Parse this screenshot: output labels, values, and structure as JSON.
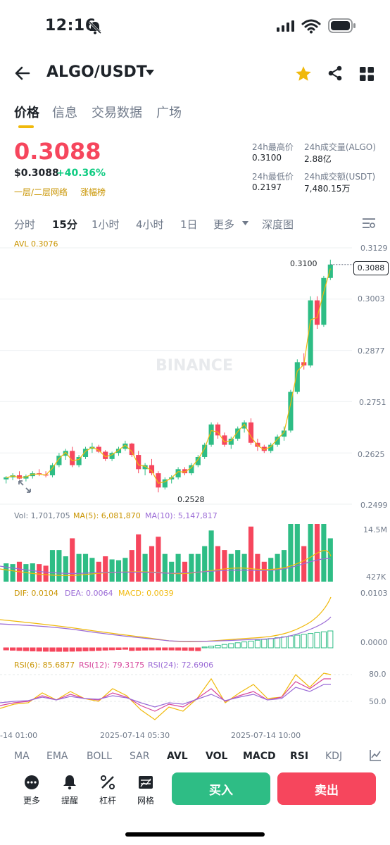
{
  "status": {
    "time": "12:16"
  },
  "header": {
    "pair": "ALGO/USDT"
  },
  "tabs": [
    {
      "label": "价格"
    },
    {
      "label": "信息"
    },
    {
      "label": "交易数据"
    },
    {
      "label": "广场"
    }
  ],
  "ticker": {
    "price": "0.3088",
    "usd_price": "$0.3088",
    "change": "+40.36%",
    "tag_layer": "一层/二层网络",
    "tag_rank": "涨幅榜",
    "high_label": "24h最高价",
    "high": "0.3100",
    "low_label": "24h最低价",
    "low": "0.2197",
    "vol_algo_label": "24h成交量(ALGO)",
    "vol_algo": "2.88亿",
    "vol_usdt_label": "24h成交额(USDT)",
    "vol_usdt": "7,480.15万"
  },
  "intervals": [
    {
      "label": "分时"
    },
    {
      "label": "15分"
    },
    {
      "label": "1小时"
    },
    {
      "label": "4小时"
    },
    {
      "label": "1日"
    },
    {
      "label": "更多"
    },
    {
      "label": "深度图"
    }
  ],
  "indicators_text": {
    "avl": "AVL 0.3076",
    "high_marker": "0.3100",
    "low_marker": "0.2528",
    "current_price_tag": "0.3088",
    "vol": "Vol: 1,701,705",
    "vol_ma5": "MA(5): 6,081,870",
    "vol_ma10": "MA(10): 5,147,817",
    "vol_axis_top": "14.5M",
    "vol_axis_bottom": "427K",
    "dif": "DIF: 0.0104",
    "dea": "DEA: 0.0064",
    "macd": "MACD: 0.0039",
    "macd_axis_top": "0.0103",
    "macd_axis_bottom": "0.0000",
    "rsi6": "RSI(6): 85.6877",
    "rsi12": "RSI(12): 79.3175",
    "rsi24": "RSI(24): 72.6906",
    "rsi_axis_top": "80.0",
    "rsi_axis_bottom": "50.0",
    "watermark": "BINANCE"
  },
  "price_axis": [
    "0.3129",
    "0.3003",
    "0.2877",
    "0.2751",
    "0.2625",
    "0.2499"
  ],
  "time_axis": [
    "-14 01:00",
    "2025-07-14 05:30",
    "2025-07-14 10:00"
  ],
  "indicator_tabs": [
    {
      "label": "MA"
    },
    {
      "label": "EMA"
    },
    {
      "label": "BOLL"
    },
    {
      "label": "SAR"
    },
    {
      "label": "AVL"
    },
    {
      "label": "VOL"
    },
    {
      "label": "MACD"
    },
    {
      "label": "RSI"
    },
    {
      "label": "KDJ"
    }
  ],
  "bottom_bar": [
    {
      "label": "更多"
    },
    {
      "label": "提醒"
    },
    {
      "label": "杠杆"
    },
    {
      "label": "网格"
    }
  ],
  "buttons": {
    "buy": "买入",
    "sell": "卖出"
  },
  "colors": {
    "up": "#2ebd85",
    "down": "#f6465d",
    "accent": "#f0b90b",
    "ma5": "#f0b90b",
    "ma10": "#9b6bd6"
  },
  "chart_data": {
    "type": "candlestick",
    "ylim": [
      0.2499,
      0.3129
    ],
    "candles": [
      [
        0.256,
        0.2568,
        0.255,
        0.2565
      ],
      [
        0.2565,
        0.2575,
        0.2558,
        0.257
      ],
      [
        0.257,
        0.258,
        0.256,
        0.2562
      ],
      [
        0.2562,
        0.2572,
        0.2555,
        0.2568
      ],
      [
        0.2568,
        0.258,
        0.2562,
        0.2575
      ],
      [
        0.2575,
        0.2585,
        0.2568,
        0.2572
      ],
      [
        0.2572,
        0.258,
        0.2565,
        0.257
      ],
      [
        0.257,
        0.26,
        0.2565,
        0.2595
      ],
      [
        0.2595,
        0.2625,
        0.259,
        0.2618
      ],
      [
        0.2618,
        0.2635,
        0.2608,
        0.263
      ],
      [
        0.263,
        0.264,
        0.259,
        0.2595
      ],
      [
        0.2595,
        0.262,
        0.259,
        0.2615
      ],
      [
        0.2615,
        0.264,
        0.261,
        0.2635
      ],
      [
        0.2635,
        0.265,
        0.2625,
        0.264
      ],
      [
        0.264,
        0.2645,
        0.2625,
        0.2628
      ],
      [
        0.2628,
        0.2632,
        0.2605,
        0.261
      ],
      [
        0.261,
        0.2628,
        0.2605,
        0.2625
      ],
      [
        0.2625,
        0.264,
        0.2618,
        0.2635
      ],
      [
        0.2635,
        0.2655,
        0.263,
        0.2648
      ],
      [
        0.2648,
        0.265,
        0.2615,
        0.262
      ],
      [
        0.262,
        0.263,
        0.2575,
        0.2585
      ],
      [
        0.2585,
        0.26,
        0.257,
        0.2595
      ],
      [
        0.2595,
        0.261,
        0.257,
        0.2575
      ],
      [
        0.2575,
        0.258,
        0.2528,
        0.254
      ],
      [
        0.254,
        0.2565,
        0.2535,
        0.256
      ],
      [
        0.256,
        0.257,
        0.255,
        0.2565
      ],
      [
        0.2565,
        0.259,
        0.256,
        0.2585
      ],
      [
        0.2585,
        0.259,
        0.257,
        0.2575
      ],
      [
        0.2575,
        0.26,
        0.257,
        0.2595
      ],
      [
        0.2595,
        0.262,
        0.259,
        0.2615
      ],
      [
        0.2615,
        0.265,
        0.261,
        0.2645
      ],
      [
        0.2645,
        0.27,
        0.264,
        0.2695
      ],
      [
        0.2695,
        0.27,
        0.266,
        0.2668
      ],
      [
        0.2668,
        0.2675,
        0.264,
        0.2645
      ],
      [
        0.2645,
        0.2665,
        0.2635,
        0.266
      ],
      [
        0.266,
        0.269,
        0.2655,
        0.2685
      ],
      [
        0.2685,
        0.2705,
        0.2675,
        0.27
      ],
      [
        0.27,
        0.271,
        0.2645,
        0.265
      ],
      [
        0.265,
        0.266,
        0.263,
        0.264
      ],
      [
        0.264,
        0.2645,
        0.2625,
        0.263
      ],
      [
        0.263,
        0.265,
        0.2625,
        0.2645
      ],
      [
        0.2645,
        0.267,
        0.264,
        0.2665
      ],
      [
        0.2665,
        0.269,
        0.2655,
        0.268
      ],
      [
        0.268,
        0.278,
        0.2675,
        0.2775
      ],
      [
        0.2775,
        0.2855,
        0.277,
        0.2848
      ],
      [
        0.2848,
        0.287,
        0.283,
        0.284
      ],
      [
        0.284,
        0.301,
        0.2835,
        0.3
      ],
      [
        0.3,
        0.301,
        0.293,
        0.294
      ],
      [
        0.294,
        0.306,
        0.2935,
        0.3055
      ],
      [
        0.3055,
        0.31,
        0.305,
        0.3088
      ]
    ],
    "volume_scale_max": 14.5
  }
}
